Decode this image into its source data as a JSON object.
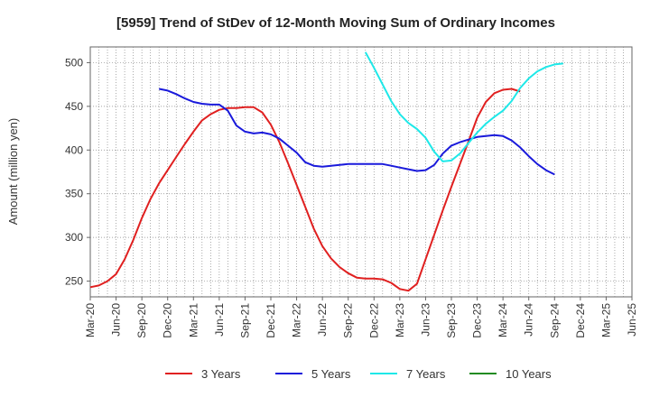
{
  "chart_data": {
    "type": "line",
    "title": "[5959]  Trend of StDev of 12-Month Moving Sum of Ordinary Incomes",
    "ylabel": "Amount (million yen)",
    "xlabel": "",
    "ylim": [
      232,
      518
    ],
    "yticks": [
      250,
      300,
      350,
      400,
      450,
      500
    ],
    "x_ticks": [
      "Mar-20",
      "Jun-20",
      "Sep-20",
      "Dec-20",
      "Mar-21",
      "Jun-21",
      "Sep-21",
      "Dec-21",
      "Mar-22",
      "Jun-22",
      "Sep-22",
      "Dec-22",
      "Mar-23",
      "Jun-23",
      "Sep-23",
      "Dec-23",
      "Mar-24",
      "Jun-24",
      "Sep-24",
      "Dec-24",
      "Mar-25",
      "Jun-25"
    ],
    "grid": true,
    "legend_position": "bottom",
    "series": [
      {
        "name": "3 Years",
        "color": "#e02020",
        "start": "Mar-20",
        "values": [
          243,
          245,
          250,
          258,
          275,
          297,
          322,
          344,
          362,
          377,
          392,
          407,
          421,
          434,
          441,
          446,
          448,
          448,
          449,
          449,
          443,
          429,
          409,
          385,
          360,
          335,
          310,
          290,
          276,
          266,
          259,
          254,
          253,
          253,
          252,
          248,
          241,
          239,
          247,
          275,
          303,
          331,
          358,
          384,
          410,
          437,
          455,
          465,
          469,
          470,
          467
        ]
      },
      {
        "name": "5 Years",
        "color": "#1a1adb",
        "start": "Nov-20",
        "values": [
          470,
          468,
          464,
          459,
          455,
          453,
          452,
          452,
          445,
          428,
          421,
          419,
          420,
          418,
          413,
          405,
          397,
          386,
          382,
          381,
          382,
          383,
          384,
          384,
          384,
          384,
          384,
          382,
          380,
          378,
          376,
          377,
          383,
          396,
          405,
          409,
          412,
          415,
          416,
          417,
          416,
          411,
          403,
          393,
          384,
          377,
          372
        ]
      },
      {
        "name": "7 Years",
        "color": "#1ee8e8",
        "start": "Nov-22",
        "values": [
          512,
          494,
          475,
          456,
          441,
          431,
          424,
          414,
          398,
          387,
          388,
          396,
          408,
          420,
          430,
          438,
          445,
          456,
          471,
          482,
          490,
          495,
          498,
          499
        ]
      },
      {
        "name": "10 Years",
        "color": "#228b22",
        "start": "Mar-20",
        "values": []
      }
    ]
  }
}
